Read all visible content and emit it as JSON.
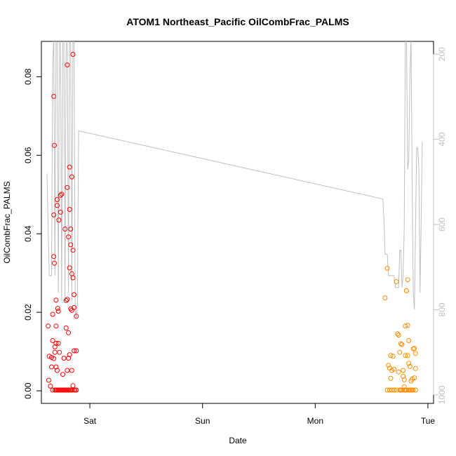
{
  "chart_data": {
    "type": "scatter",
    "title": "ATOM1 Northeast_Pacific OilCombFrac_PALMS",
    "xlabel": "Date",
    "ylabel": "OilCombFrac_PALMS",
    "x_tick_labels": [
      "Sat",
      "Sun",
      "Mon",
      "Tue"
    ],
    "x_ticks_days": [
      1,
      2,
      3,
      4
    ],
    "xlim_days": [
      0.57,
      4.05
    ],
    "ylim": [
      -0.0032,
      0.089
    ],
    "y_ticks": [
      0.0,
      0.02,
      0.04,
      0.06,
      0.08
    ],
    "y_tick_labels": [
      "0.00",
      "0.02",
      "0.04",
      "0.06",
      "0.08"
    ],
    "y2_ticks": [
      200,
      400,
      600,
      800,
      1000
    ],
    "y2_tick_labels": [
      "200",
      "400",
      "600",
      "800",
      "1000"
    ],
    "y2_inverted": true,
    "y2_lim": [
      1020,
      170
    ],
    "grid": false,
    "colors": {
      "series_1": "#ff0000",
      "series_2": "#ff8c00",
      "altitude_line": "#bfbfbf",
      "axis": "#000000",
      "right_axis": "#bfbfbf"
    },
    "series": [
      {
        "points": [
          [
            0.63,
            0.0165
          ],
          [
            0.64,
            0.0088
          ],
          [
            0.635,
            0.0027
          ],
          [
            0.65,
            0.0012
          ],
          [
            0.66,
            0.0061
          ],
          [
            0.66,
            0.0085
          ],
          [
            0.67,
            0.0195
          ],
          [
            0.67,
            0.0128
          ],
          [
            0.68,
            0.075
          ],
          [
            0.685,
            0.0625
          ],
          [
            0.68,
            0.0342
          ],
          [
            0.685,
            0.0325
          ],
          [
            0.68,
            0.0448
          ],
          [
            0.69,
            0.0112
          ],
          [
            0.69,
            0.0098
          ],
          [
            0.7,
            0.0165
          ],
          [
            0.7,
            0.0231
          ],
          [
            0.71,
            0.0487
          ],
          [
            0.71,
            0.0472
          ],
          [
            0.715,
            0.021
          ],
          [
            0.72,
            0.0203
          ],
          [
            0.72,
            0.0121
          ],
          [
            0.725,
            0.0435
          ],
          [
            0.73,
            0.0098
          ],
          [
            0.74,
            0.0455
          ],
          [
            0.74,
            0.0498
          ],
          [
            0.75,
            0.0501
          ],
          [
            0.76,
            0.0042
          ],
          [
            0.77,
            0.0083
          ],
          [
            0.78,
            0.0412
          ],
          [
            0.79,
            0.016
          ],
          [
            0.79,
            0.023
          ],
          [
            0.8,
            0.0518
          ],
          [
            0.8,
            0.0233
          ],
          [
            0.81,
            0.0392
          ],
          [
            0.81,
            0.0148
          ],
          [
            0.82,
            0.0462
          ],
          [
            0.82,
            0.057
          ],
          [
            0.82,
            0.0313
          ],
          [
            0.83,
            0.0372
          ],
          [
            0.83,
            0.0412
          ],
          [
            0.84,
            0.0545
          ],
          [
            0.84,
            0.0298
          ],
          [
            0.85,
            0.0358
          ],
          [
            0.85,
            0.0288
          ],
          [
            0.86,
            0.0245
          ],
          [
            0.86,
            0.0212
          ],
          [
            0.86,
            0.0102
          ],
          [
            0.84,
            0.0205
          ],
          [
            0.83,
            0.0209
          ],
          [
            0.81,
            0.0083
          ],
          [
            0.8,
            0.0052
          ],
          [
            0.82,
            0.0092
          ],
          [
            0.84,
            0.0052
          ],
          [
            0.85,
            0.0013
          ],
          [
            0.88,
            0.019
          ],
          [
            0.88,
            0.0102
          ],
          [
            0.8,
            0.083
          ],
          [
            0.85,
            0.0857
          ],
          [
            0.69,
            0.0002
          ],
          [
            0.72,
            0.0002
          ],
          [
            0.75,
            0.0002
          ],
          [
            0.78,
            0.0002
          ],
          [
            0.81,
            0.0002
          ],
          [
            0.84,
            0.0002
          ],
          [
            0.87,
            0.0002
          ],
          [
            0.71,
            0.0002
          ],
          [
            0.73,
            0.0002
          ],
          [
            0.77,
            0.0002
          ],
          [
            0.79,
            0.0002
          ],
          [
            0.83,
            0.0002
          ],
          [
            0.86,
            0.0002
          ],
          [
            0.74,
            0.0002
          ],
          [
            0.76,
            0.0002
          ],
          [
            0.8,
            0.0002
          ],
          [
            0.82,
            0.0002
          ],
          [
            0.88,
            0.0002
          ],
          [
            0.7,
            0.0002
          ],
          [
            0.67,
            0.0002
          ],
          [
            0.68,
            0.0082
          ],
          [
            0.7,
            0.0061
          ],
          [
            0.71,
            0.0052
          ],
          [
            0.7,
            0.0121
          ]
        ]
      },
      {
        "points": [
          [
            3.62,
            0.0237
          ],
          [
            3.64,
            0.0312
          ],
          [
            3.65,
            0.0065
          ],
          [
            3.66,
            0.0058
          ],
          [
            3.67,
            0.009
          ],
          [
            3.67,
            0.0032
          ],
          [
            3.68,
            0.0052
          ],
          [
            3.69,
            0.0088
          ],
          [
            3.7,
            0.0055
          ],
          [
            3.72,
            0.0278
          ],
          [
            3.73,
            0.0145
          ],
          [
            3.74,
            0.0142
          ],
          [
            3.74,
            0.0048
          ],
          [
            3.75,
            0.0098
          ],
          [
            3.76,
            0.012
          ],
          [
            3.77,
            0.0118
          ],
          [
            3.78,
            0.0052
          ],
          [
            3.78,
            0.0037
          ],
          [
            3.79,
            0.001
          ],
          [
            3.79,
            0.0028
          ],
          [
            3.8,
            0.0165
          ],
          [
            3.81,
            0.0255
          ],
          [
            3.82,
            0.0283
          ],
          [
            3.82,
            0.0167
          ],
          [
            3.83,
            0.0128
          ],
          [
            3.83,
            0.007
          ],
          [
            3.84,
            0.0062
          ],
          [
            3.85,
            0.0025
          ],
          [
            3.86,
            0.003
          ],
          [
            3.87,
            0.0107
          ],
          [
            3.88,
            0.0108
          ],
          [
            3.88,
            0.0033
          ],
          [
            3.89,
            0.0095
          ],
          [
            3.89,
            0.0057
          ],
          [
            3.82,
            0.009
          ],
          [
            3.8,
            0.009
          ],
          [
            3.81,
            0.0255
          ],
          [
            3.64,
            0.0002
          ],
          [
            3.66,
            0.0002
          ],
          [
            3.68,
            0.0002
          ],
          [
            3.7,
            0.0002
          ],
          [
            3.72,
            0.0002
          ],
          [
            3.75,
            0.0002
          ],
          [
            3.77,
            0.0002
          ],
          [
            3.79,
            0.0002
          ],
          [
            3.81,
            0.0002
          ],
          [
            3.83,
            0.0002
          ],
          [
            3.85,
            0.0002
          ],
          [
            3.87,
            0.0002
          ],
          [
            3.89,
            0.0002
          ],
          [
            3.76,
            0.0002
          ],
          [
            3.84,
            0.0002
          ],
          [
            3.86,
            0.0002
          ],
          [
            3.8,
            0.0002
          ]
        ]
      }
    ],
    "altitude_line": [
      [
        0.62,
        480
      ],
      [
        0.64,
        720
      ],
      [
        0.66,
        720
      ],
      [
        0.67,
        220
      ],
      [
        0.68,
        160
      ],
      [
        0.69,
        720
      ],
      [
        0.7,
        170
      ],
      [
        0.71,
        160
      ],
      [
        0.72,
        760
      ],
      [
        0.73,
        170
      ],
      [
        0.74,
        160
      ],
      [
        0.75,
        780
      ],
      [
        0.76,
        160
      ],
      [
        0.77,
        170
      ],
      [
        0.78,
        780
      ],
      [
        0.79,
        160
      ],
      [
        0.8,
        170
      ],
      [
        0.81,
        760
      ],
      [
        0.82,
        160
      ],
      [
        0.83,
        180
      ],
      [
        0.84,
        780
      ],
      [
        0.85,
        160
      ],
      [
        0.86,
        170
      ],
      [
        0.87,
        800
      ],
      [
        0.88,
        820
      ],
      [
        0.89,
        790
      ],
      [
        0.9,
        380
      ],
      [
        3.6,
        540
      ],
      [
        3.61,
        590
      ],
      [
        3.62,
        670
      ],
      [
        3.64,
        670
      ],
      [
        3.65,
        720
      ],
      [
        3.67,
        720
      ],
      [
        3.7,
        720
      ],
      [
        3.71,
        748
      ],
      [
        3.74,
        748
      ],
      [
        3.75,
        660
      ],
      [
        3.76,
        660
      ],
      [
        3.77,
        748
      ],
      [
        3.78,
        720
      ],
      [
        3.79,
        610
      ],
      [
        3.8,
        160
      ],
      [
        3.81,
        160
      ],
      [
        3.82,
        470
      ],
      [
        3.83,
        450
      ],
      [
        3.84,
        250
      ],
      [
        3.85,
        160
      ],
      [
        3.86,
        500
      ],
      [
        3.87,
        760
      ],
      [
        3.88,
        800
      ],
      [
        3.89,
        610
      ],
      [
        3.9,
        420
      ],
      [
        3.91,
        420
      ],
      [
        3.92,
        470
      ],
      [
        3.93,
        760
      ],
      [
        3.94,
        600
      ],
      [
        3.95,
        405
      ]
    ]
  }
}
